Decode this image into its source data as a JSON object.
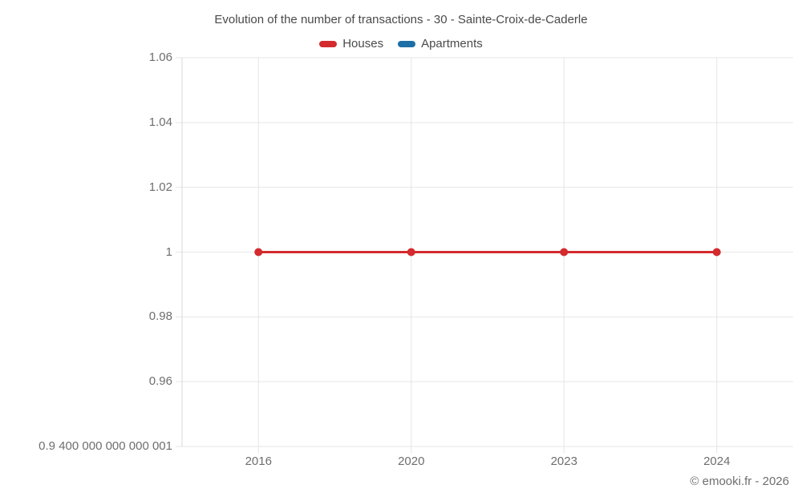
{
  "title": "Evolution of the number of transactions - 30 - Sainte-Croix-de-Caderle",
  "legend": {
    "items": [
      {
        "id": "houses",
        "label": "Houses",
        "color": "#d32b2e"
      },
      {
        "id": "apartments",
        "label": "Apartments",
        "color": "#1d6fa5"
      }
    ]
  },
  "footer": {
    "credit": "© emooki.fr - 2026"
  },
  "colors": {
    "houses": "#d32b2e",
    "apartments": "#1d6fa5",
    "grid": "#e6e6e6",
    "axis": "#d9d9d9",
    "title_text": "#4a4a4a",
    "tick_text": "#6e6e6e"
  },
  "chart_data": {
    "type": "line",
    "title": "Evolution of the number of transactions - 30 - Sainte-Croix-de-Caderle",
    "categories": [
      "2016",
      "2020",
      "2023",
      "2024"
    ],
    "series": [
      {
        "name": "Houses",
        "color": "#d32b2e",
        "values": [
          1,
          1,
          1,
          1
        ]
      },
      {
        "name": "Apartments",
        "color": "#1d6fa5",
        "values": [
          null,
          null,
          null,
          null
        ]
      }
    ],
    "xlabel": "",
    "ylabel": "",
    "ylim": [
      0.9400000000000001,
      1.06
    ],
    "y_ticks": [
      {
        "value": 1.06,
        "label": "1.06"
      },
      {
        "value": 1.04,
        "label": "1.04"
      },
      {
        "value": 1.02,
        "label": "1.02"
      },
      {
        "value": 1.0,
        "label": "1"
      },
      {
        "value": 0.98,
        "label": "0.98"
      },
      {
        "value": 0.96,
        "label": "0.96"
      },
      {
        "value": 0.9400000000000001,
        "label": "0.9 400 000 000 000 001"
      }
    ],
    "grid": true,
    "legend_position": "top",
    "marker": "circle"
  }
}
